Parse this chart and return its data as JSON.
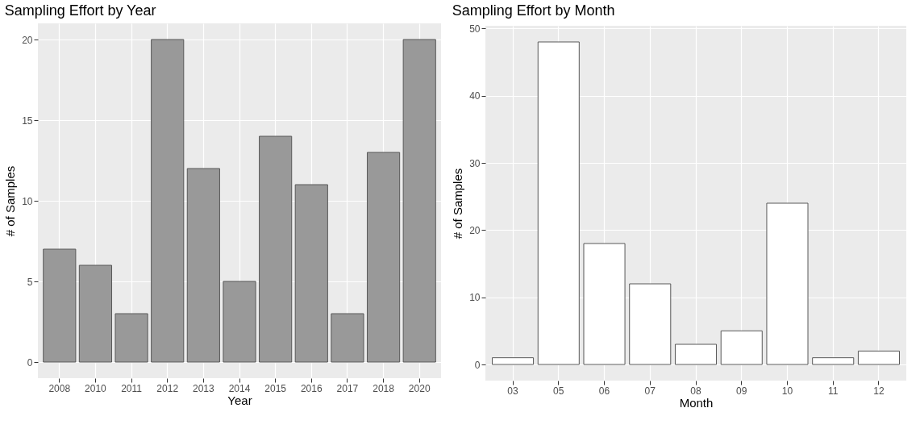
{
  "chart_data": [
    {
      "type": "bar",
      "title": "Sampling Effort by Year",
      "xlabel": "Year",
      "ylabel": "# of Samples",
      "categories": [
        "2008",
        "2010",
        "2011",
        "2012",
        "2013",
        "2014",
        "2015",
        "2016",
        "2017",
        "2018",
        "2020"
      ],
      "values": [
        7,
        6,
        3,
        20,
        12,
        5,
        14,
        11,
        3,
        13,
        20
      ],
      "color": "#999999",
      "ylim": [
        -1,
        21
      ],
      "yticks": [
        0,
        5,
        10,
        15,
        20
      ],
      "grid": true
    },
    {
      "type": "bar",
      "title": "Sampling Effort by Month",
      "xlabel": "Month",
      "ylabel": "# of Samples",
      "categories": [
        "03",
        "05",
        "06",
        "07",
        "08",
        "09",
        "10",
        "11",
        "12"
      ],
      "values": [
        1,
        48,
        18,
        12,
        3,
        5,
        24,
        1,
        2
      ],
      "color": "#ffffff",
      "ylim": [
        -2.4,
        50.4
      ],
      "yticks": [
        0,
        10,
        20,
        30,
        40,
        50
      ],
      "grid": true
    }
  ]
}
